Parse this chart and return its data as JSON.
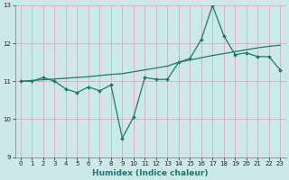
{
  "xlabel": "Humidex (Indice chaleur)",
  "bg_color": "#cce8e8",
  "grid_color": "#dbaabb",
  "line_color": "#1a7a6e",
  "xlim": [
    -0.5,
    23.5
  ],
  "ylim": [
    9,
    13
  ],
  "yticks": [
    9,
    10,
    11,
    12,
    13
  ],
  "xticks": [
    0,
    1,
    2,
    3,
    4,
    5,
    6,
    7,
    8,
    9,
    10,
    11,
    12,
    13,
    14,
    15,
    16,
    17,
    18,
    19,
    20,
    21,
    22,
    23
  ],
  "line1_x": [
    0,
    1,
    2,
    3,
    4,
    5,
    6,
    7,
    8,
    9,
    10,
    11,
    12,
    13,
    14,
    15,
    16,
    17,
    18,
    19,
    20,
    21,
    22,
    23
  ],
  "line1_y": [
    11.0,
    11.0,
    11.1,
    11.0,
    10.8,
    10.7,
    10.85,
    10.75,
    10.9,
    9.5,
    10.05,
    11.1,
    11.05,
    11.05,
    11.5,
    11.6,
    12.1,
    13.0,
    12.2,
    11.7,
    11.75,
    11.65,
    11.65,
    11.3
  ],
  "line2_x": [
    0,
    1,
    2,
    3,
    4,
    5,
    6,
    7,
    8,
    9,
    10,
    11,
    12,
    13,
    14,
    15,
    16,
    17,
    18,
    19,
    20,
    21,
    22,
    23
  ],
  "line2_y": [
    11.0,
    11.02,
    11.04,
    11.06,
    11.08,
    11.1,
    11.12,
    11.15,
    11.18,
    11.2,
    11.25,
    11.3,
    11.35,
    11.4,
    11.5,
    11.56,
    11.62,
    11.68,
    11.73,
    11.78,
    11.83,
    11.88,
    11.92,
    11.95
  ]
}
